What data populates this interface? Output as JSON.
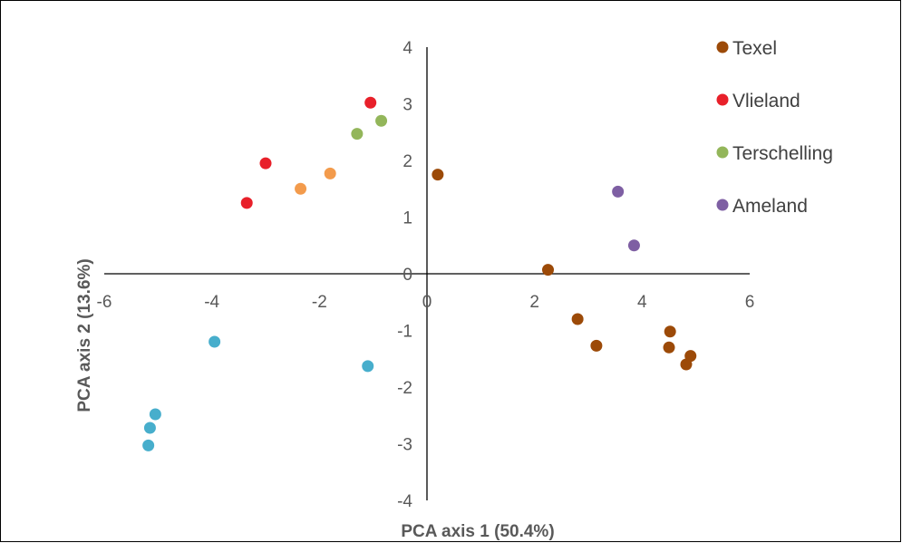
{
  "chart_data": {
    "type": "scatter",
    "xlabel": "PCA axis 1 (50.4%)",
    "ylabel": "PCA axis 2 (13.6%)",
    "xlim": [
      -6,
      6
    ],
    "ylim": [
      -4,
      4
    ],
    "xticks": [
      -6,
      -4,
      -2,
      0,
      2,
      4,
      6
    ],
    "yticks": [
      -4,
      -3,
      -2,
      -1,
      0,
      1,
      2,
      3,
      4
    ],
    "xtick_labels": [
      "-6",
      "-4",
      "-2",
      "0",
      "2",
      "4",
      "6"
    ],
    "ytick_labels": [
      "-4",
      "-3",
      "-2",
      "-1",
      "0",
      "1",
      "2",
      "3",
      "4"
    ],
    "legend_position": "top-right",
    "grid": false,
    "series": [
      {
        "name": "Texel",
        "color": "#9C4A08",
        "points": [
          [
            0.2,
            1.75
          ],
          [
            2.25,
            0.07
          ],
          [
            2.8,
            -0.8
          ],
          [
            3.15,
            -1.27
          ],
          [
            4.5,
            -1.3
          ],
          [
            4.52,
            -1.02
          ],
          [
            4.82,
            -1.6
          ],
          [
            4.9,
            -1.45
          ]
        ]
      },
      {
        "name": "Vlieland",
        "color": "#E8202A",
        "points": [
          [
            -3.35,
            1.25
          ],
          [
            -3.0,
            1.95
          ],
          [
            -1.05,
            3.02
          ]
        ]
      },
      {
        "name": "Terschelling",
        "color": "#93B65A",
        "points": [
          [
            -1.3,
            2.47
          ],
          [
            -0.85,
            2.7
          ]
        ]
      },
      {
        "name": "Ameland",
        "color": "#7E5FA3",
        "points": [
          [
            3.55,
            1.45
          ],
          [
            3.85,
            0.5
          ]
        ]
      },
      {
        "color": "#F39B4C",
        "points": [
          [
            -2.35,
            1.5
          ],
          [
            -1.8,
            1.77
          ]
        ]
      },
      {
        "color": "#47AECC",
        "points": [
          [
            -3.95,
            -1.2
          ],
          [
            -1.1,
            -1.63
          ],
          [
            -5.05,
            -2.48
          ],
          [
            -5.15,
            -2.72
          ],
          [
            -5.18,
            -3.03
          ]
        ]
      }
    ]
  }
}
